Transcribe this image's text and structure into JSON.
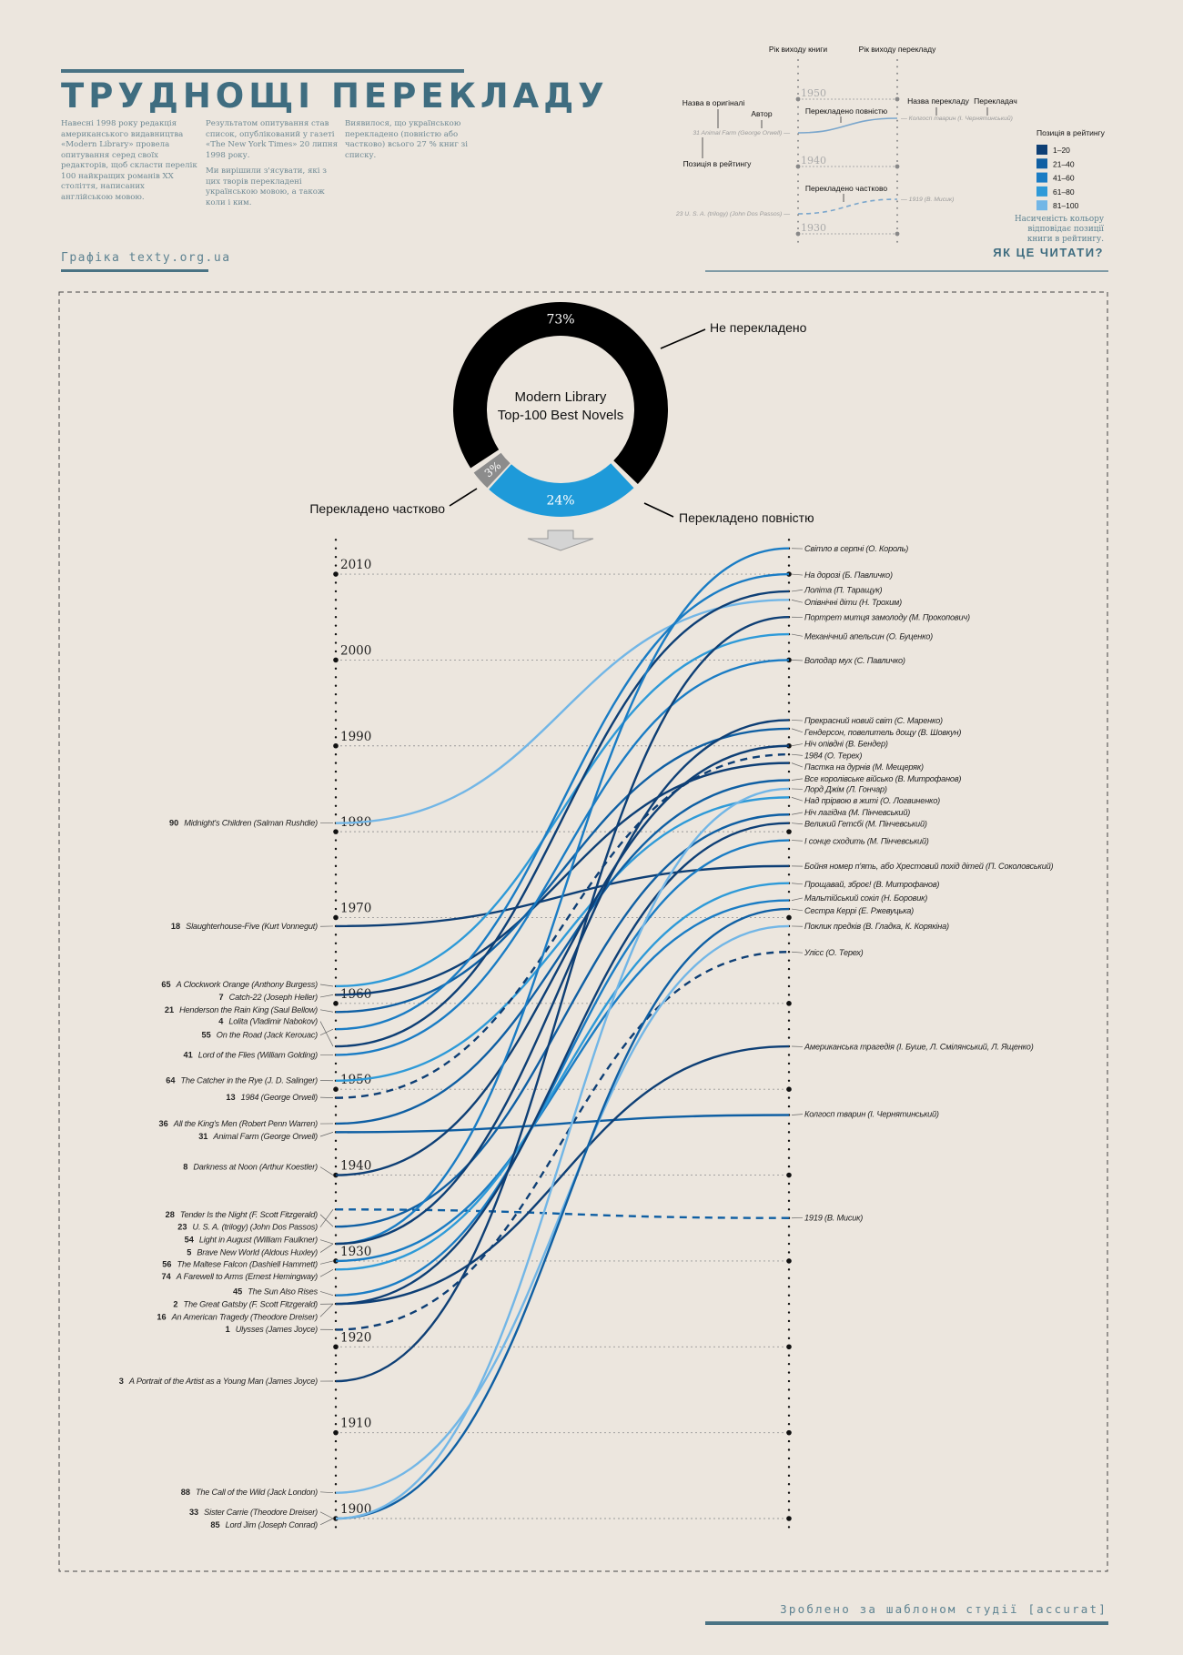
{
  "header": {
    "title": "ТРУДНОЩІ ПЕРЕКЛАДУ",
    "col1": "Навесні 1998 року редакція американського видавництва «Modern Library» провела опитування серед своїх редакторів, щоб скласти перелік 100 найкращих романів XX століття, написаних англійською мовою.",
    "col2a": "Результатом опитування став список, опублікований у газеті «The New York Times» 20 липня 1998 року.",
    "col2b": "Ми вирішили з'ясувати, які з цих творів перекладені українською мовою, а також коли і ким.",
    "col3": "Виявилося, що українською перекладено (повністю або частково) всього 27 % книг зі списку.",
    "credit": "Графіка texty.org.ua"
  },
  "how_to_read": {
    "title": "ЯК ЦЕ ЧИТАТИ?",
    "axis_book": "Рік виходу книги",
    "axis_translation": "Рік виходу перекладу",
    "years": [
      "1950",
      "1940",
      "1930"
    ],
    "ann_original_title": "Назва в оригіналі",
    "ann_author": "Автор",
    "ann_rank": "Позиція в рейтингу",
    "ann_full": "Перекладено повністю",
    "ann_translation_title": "Назва перекладу",
    "ann_translator": "Перекладач",
    "ann_partial": "Перекладено частково",
    "example1_left": "31  Animal Farm (George Orwell) —",
    "example1_right": "— Колгосп тварин (І. Чернятинський)",
    "example2_left": "23  U. S. A. (trilogy) (John Dos Passos) —",
    "example2_right": "— 1919 (В. Мисик)",
    "legend_title": "Позиція в рейтингу",
    "legend": [
      {
        "label": "1–20",
        "color": "#0e3f75"
      },
      {
        "label": "21–40",
        "color": "#0f5fa3"
      },
      {
        "label": "41–60",
        "color": "#1a7cc4"
      },
      {
        "label": "61–80",
        "color": "#2e9ad8"
      },
      {
        "label": "81–100",
        "color": "#72b6e6"
      }
    ],
    "note1": "Насиченість кольору",
    "note2": "відповідає позиції",
    "note3": "книги в рейтингу."
  },
  "chart_data": [
    {
      "type": "pie",
      "title": "Modern Library",
      "subtitle": "Top-100 Best Novels",
      "slices": [
        {
          "label": "Не перекладено",
          "value": 73,
          "value_label": "73%",
          "color": "#000000"
        },
        {
          "label": "Перекладено повністю",
          "value": 24,
          "value_label": "24%",
          "color": "#1e9ad9"
        },
        {
          "label": "Перекладено частково",
          "value": 3,
          "value_label": "3%",
          "color": "#8c8c8c"
        }
      ]
    },
    {
      "type": "line",
      "xlabel_left": "Рік виходу книги",
      "xlabel_right": "Рік виходу перекладу",
      "ylim": [
        1900,
        2010
      ],
      "year_ticks": [
        "1900",
        "1910",
        "1920",
        "1930",
        "1940",
        "1950",
        "1960",
        "1970",
        "1980",
        "1990",
        "2000",
        "2010"
      ],
      "books": [
        {
          "rank": "90",
          "original": "Midnight's Children (Salman Rushdie)",
          "year": 1981,
          "translation": "Опівнічні діти (Н. Трохим)",
          "trans_year": 2007,
          "partial": false
        },
        {
          "rank": "18",
          "original": "Slaughterhouse-Five (Kurt Vonnegut)",
          "year": 1969,
          "translation": "Бойня номер п'ять, або Хрестовий похід дітей (П. Соколовський)",
          "trans_year": 1976,
          "partial": false
        },
        {
          "rank": "65",
          "original": "A Clockwork Orange (Anthony Burgess)",
          "year": 1962,
          "translation": "Механічний апельсин (О. Буценко)",
          "trans_year": 2003,
          "partial": false
        },
        {
          "rank": "7",
          "original": "Catch-22 (Joseph Heller)",
          "year": 1961,
          "translation": "Пастка на дурнів (М. Мещеряк)",
          "trans_year": 1988,
          "partial": false
        },
        {
          "rank": "21",
          "original": "Henderson the Rain King (Saul Bellow)",
          "year": 1959,
          "translation": "Гендерсон, повелитель дощу (В. Шовкун)",
          "trans_year": 1992,
          "partial": false
        },
        {
          "rank": "4",
          "original": "Lolita (Vladimir Nabokov)",
          "year": 1955,
          "translation": "Лоліта (П. Таращук)",
          "trans_year": 2008,
          "partial": false
        },
        {
          "rank": "55",
          "original": "On the Road (Jack Kerouac)",
          "year": 1957,
          "translation": "На дорозі (Б. Павличко)",
          "trans_year": 2010,
          "partial": false
        },
        {
          "rank": "41",
          "original": "Lord of the Flies (William Golding)",
          "year": 1954,
          "translation": "Володар мух (С. Павличко)",
          "trans_year": 2000,
          "partial": false
        },
        {
          "rank": "64",
          "original": "The Catcher in the Rye (J. D. Salinger)",
          "year": 1951,
          "translation": "Над прірвою в житі (О. Логвиненко)",
          "trans_year": 1984,
          "partial": false
        },
        {
          "rank": "13",
          "original": "1984 (George Orwell)",
          "year": 1949,
          "translation": "1984 (О. Терех)",
          "trans_year": 1989,
          "partial": true
        },
        {
          "rank": "36",
          "original": "All the King's Men (Robert Penn Warren)",
          "year": 1946,
          "translation": "Все королівське військо (В. Митрофанов)",
          "trans_year": 1986,
          "partial": false
        },
        {
          "rank": "31",
          "original": "Animal Farm (George Orwell)",
          "year": 1945,
          "translation": "Колгосп тварин (І. Чернятинський)",
          "trans_year": 1947,
          "partial": false
        },
        {
          "rank": "8",
          "original": "Darkness at Noon (Arthur Koestler)",
          "year": 1940,
          "translation": "Ніч опівдні (В. Бендер)",
          "trans_year": 1990,
          "partial": false
        },
        {
          "rank": "28",
          "original": "Tender Is the Night (F. Scott Fitzgerald)",
          "year": 1934,
          "translation": "Ніч лагідна (М. Пінчевський)",
          "trans_year": 1982,
          "partial": false
        },
        {
          "rank": "23",
          "original": "U. S. A. (trilogy) (John Dos Passos)",
          "year": 1936,
          "translation": "1919 (В. Мисик)",
          "trans_year": 1935,
          "partial": true
        },
        {
          "rank": "54",
          "original": "Light in August (William Faulkner)",
          "year": 1932,
          "translation": "Світло в серпні (О. Король)",
          "trans_year": 2013,
          "partial": false
        },
        {
          "rank": "5",
          "original": "Brave New World (Aldous Huxley)",
          "year": 1932,
          "translation": "Прекрасний новий світ (С. Маренко)",
          "trans_year": 1993,
          "partial": false
        },
        {
          "rank": "56",
          "original": "The Maltese Falcon (Dashiell Hammett)",
          "year": 1930,
          "translation": "Мальтійський сокіл (Н. Боровик)",
          "trans_year": 1972,
          "partial": false
        },
        {
          "rank": "74",
          "original": "A Farewell to Arms (Ernest Hemingway)",
          "year": 1929,
          "translation": "Прощавай, зброє! (В. Митрофанов)",
          "trans_year": 1974,
          "partial": false
        },
        {
          "rank": "45",
          "original": "The Sun Also Rises",
          "year": 1926,
          "translation": "І сонце сходить (М. Пінчевський)",
          "trans_year": 1979,
          "partial": false
        },
        {
          "rank": "2",
          "original": "The Great Gatsby (F. Scott Fitzgerald)",
          "year": 1925,
          "translation": "Великий Гетсбі (М. Пінчевський)",
          "trans_year": 1981,
          "partial": false
        },
        {
          "rank": "16",
          "original": "An American Tragedy (Theodore Dreiser)",
          "year": 1925,
          "translation": "Американська трагедія (І. Буше, Л. Смілянський, Л. Ященко)",
          "trans_year": 1955,
          "partial": false
        },
        {
          "rank": "1",
          "original": "Ulysses (James Joyce)",
          "year": 1922,
          "translation": "Улісс (О. Терех)",
          "trans_year": 1966,
          "partial": true
        },
        {
          "rank": "3",
          "original": "A Portrait of the Artist as a Young Man (James Joyce)",
          "year": 1916,
          "translation": "Портрет митця замолоду (М. Прокопович)",
          "trans_year": 2005,
          "partial": false
        },
        {
          "rank": "88",
          "original": "The Call of the Wild (Jack London)",
          "year": 1903,
          "translation": "Поклик предків (В. Гладка, К. Корякіна)",
          "trans_year": 1969,
          "partial": false
        },
        {
          "rank": "33",
          "original": "Sister Carrie (Theodore Dreiser)",
          "year": 1900,
          "translation": "Сестра Керрі (Е. Ржевуцька)",
          "trans_year": 1971,
          "partial": false
        },
        {
          "rank": "85",
          "original": "Lord Jim (Joseph Conrad)",
          "year": 1900,
          "translation": "Лорд Джім (Л. Гончар)",
          "trans_year": 1985,
          "partial": false
        }
      ]
    }
  ],
  "footer": {
    "text": "Зроблено за шаблоном студії [accurat]"
  }
}
